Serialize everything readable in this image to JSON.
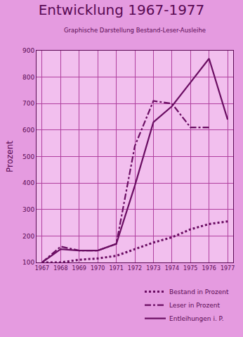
{
  "chart_data": {
    "type": "line",
    "title": "Entwicklung 1967-1977",
    "subtitle": "Graphische Darstellung Bestand-Leser-Ausleihe",
    "y_label": "Prozent",
    "categories": [
      "1967",
      "1968",
      "1969",
      "1970",
      "1971",
      "1972",
      "1973",
      "1974",
      "1975",
      "1976",
      "1977"
    ],
    "series": [
      {
        "name": "Bestand in Prozent",
        "color": "#6a0d62",
        "line_style": "dotted",
        "values": [
          100,
          100,
          110,
          115,
          125,
          150,
          175,
          195,
          225,
          245,
          255
        ]
      },
      {
        "name": "Leser in Prozent",
        "color": "#6a0d62",
        "line_style": "dashdot",
        "values": [
          100,
          160,
          145,
          145,
          170,
          540,
          710,
          700,
          610,
          610,
          null
        ]
      },
      {
        "name": "Entleihungen i. P.",
        "color": "#6a0d62",
        "line_style": "solid",
        "values": [
          100,
          150,
          145,
          145,
          170,
          390,
          630,
          690,
          780,
          870,
          640
        ]
      }
    ],
    "ylim": [
      100,
      900
    ],
    "yticks": [
      100,
      200,
      300,
      400,
      500,
      600,
      700,
      800,
      900
    ],
    "grid": true,
    "legend": "bottom"
  }
}
